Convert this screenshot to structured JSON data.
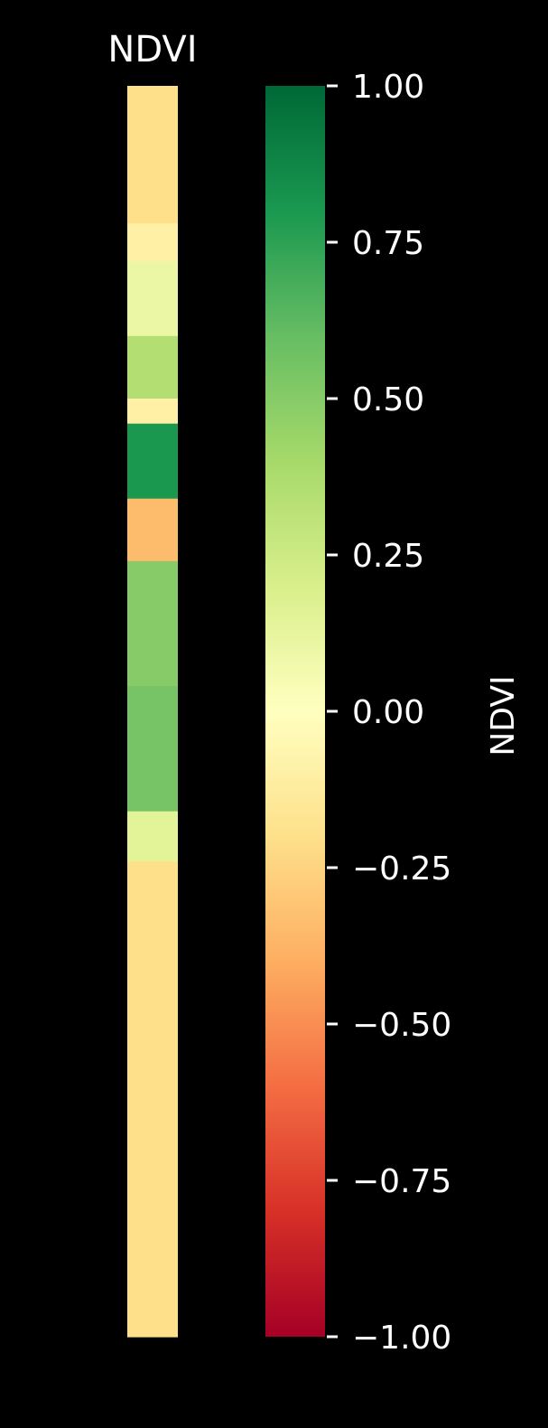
{
  "chart_data": {
    "type": "heatmap",
    "title": "NDVI",
    "colorbar": {
      "label": "NDVI",
      "min": -1.0,
      "max": 1.0,
      "colormap": "RdYlGn",
      "ticks": [
        {
          "value": 1.0,
          "label": "1.00"
        },
        {
          "value": 0.75,
          "label": "0.75"
        },
        {
          "value": 0.5,
          "label": "0.50"
        },
        {
          "value": 0.25,
          "label": "0.25"
        },
        {
          "value": 0.0,
          "label": "0.00"
        },
        {
          "value": -0.25,
          "label": "−0.25"
        },
        {
          "value": -0.5,
          "label": "−0.50"
        },
        {
          "value": -0.75,
          "label": "−0.75"
        },
        {
          "value": -1.0,
          "label": "−1.00"
        }
      ],
      "colormap_stops": [
        {
          "value": -1.0,
          "color": "#a50026"
        },
        {
          "value": -0.8,
          "color": "#d73027"
        },
        {
          "value": -0.6,
          "color": "#f46d43"
        },
        {
          "value": -0.4,
          "color": "#fdae61"
        },
        {
          "value": -0.2,
          "color": "#fee08b"
        },
        {
          "value": 0.0,
          "color": "#ffffbf"
        },
        {
          "value": 0.2,
          "color": "#d9ef8b"
        },
        {
          "value": 0.4,
          "color": "#a6d96a"
        },
        {
          "value": 0.6,
          "color": "#66bd63"
        },
        {
          "value": 0.8,
          "color": "#1a9850"
        },
        {
          "value": 1.0,
          "color": "#006837"
        }
      ]
    },
    "ndvi_strip": {
      "description_rows_top_to_bottom": "approximate NDVI profile along the strip, fraction 0 at top, 1 at bottom",
      "profile": [
        {
          "from": 0.0,
          "to": 0.11,
          "ndvi": -0.2
        },
        {
          "from": 0.11,
          "to": 0.14,
          "ndvi": -0.1
        },
        {
          "from": 0.14,
          "to": 0.2,
          "ndvi": 0.1
        },
        {
          "from": 0.2,
          "to": 0.25,
          "ndvi": 0.35
        },
        {
          "from": 0.25,
          "to": 0.27,
          "ndvi": -0.1
        },
        {
          "from": 0.27,
          "to": 0.33,
          "ndvi": 0.8
        },
        {
          "from": 0.33,
          "to": 0.38,
          "ndvi": -0.35
        },
        {
          "from": 0.38,
          "to": 0.48,
          "ndvi": 0.5
        },
        {
          "from": 0.48,
          "to": 0.58,
          "ndvi": 0.55
        },
        {
          "from": 0.58,
          "to": 0.62,
          "ndvi": 0.15
        },
        {
          "from": 0.62,
          "to": 1.0,
          "ndvi": -0.2
        }
      ]
    }
  }
}
